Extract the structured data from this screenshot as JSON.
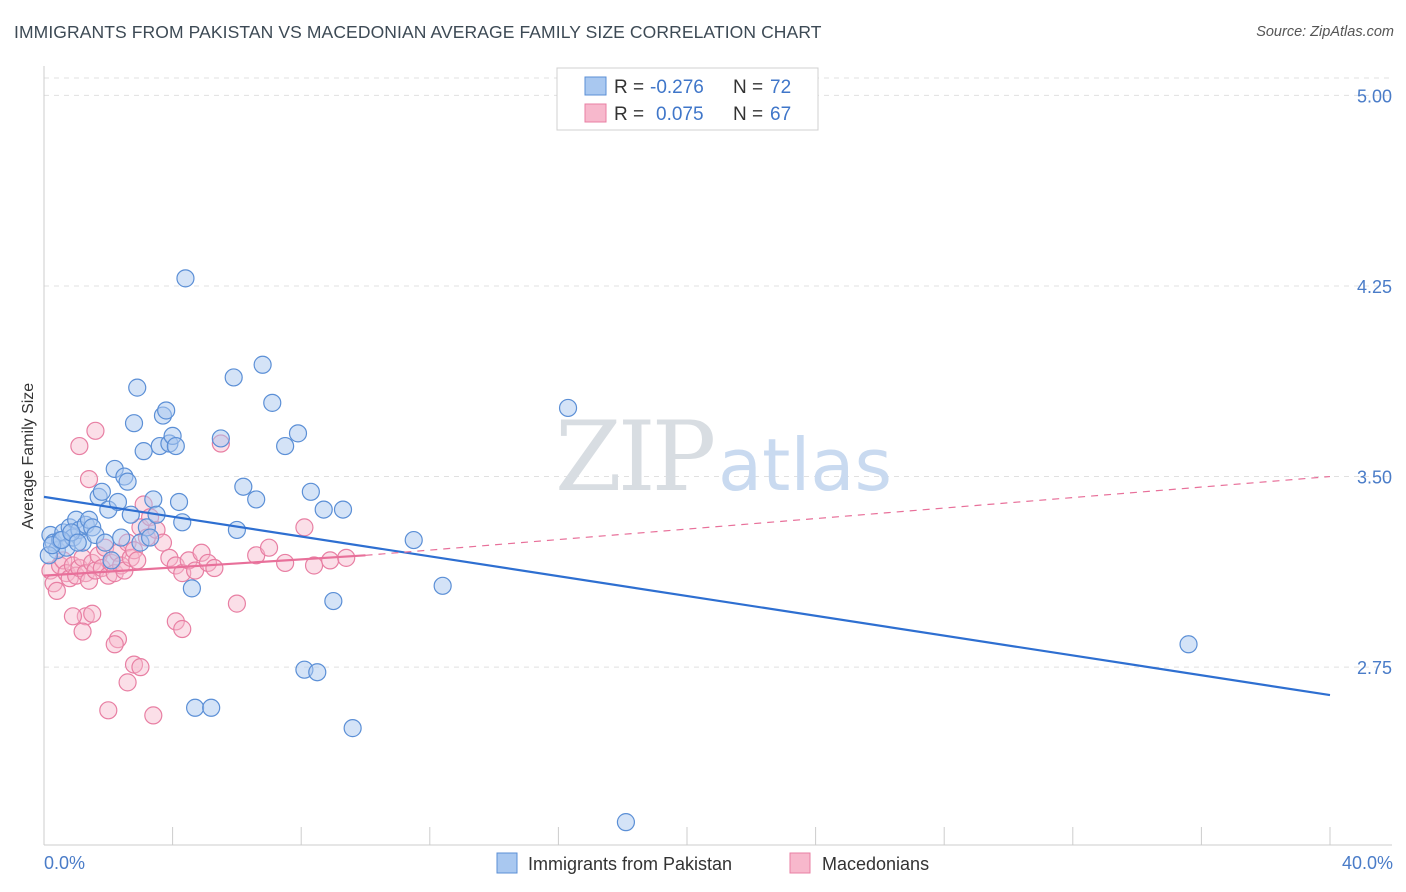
{
  "title": "IMMIGRANTS FROM PAKISTAN VS MACEDONIAN AVERAGE FAMILY SIZE CORRELATION CHART",
  "source": "Source: ZipAtlas.com",
  "watermark": {
    "zip": "ZIP",
    "atlas": "atlas"
  },
  "colors": {
    "blue_fill": "#a9c8f0",
    "blue_stroke": "#5b8fd6",
    "blue_line": "#2e6fd1",
    "pink_fill": "#f7b8cc",
    "pink_stroke": "#e87fa3",
    "pink_line": "#e8709a",
    "grid": "#e0e0e0",
    "tick_label": "#4a7cc8"
  },
  "legend": {
    "rows": [
      {
        "r_label": "R =",
        "r_value": "-0.276",
        "n_label": "N =",
        "n_value": "72"
      },
      {
        "r_label": "R =",
        "r_value": "0.075",
        "n_label": "N =",
        "n_value": "67"
      }
    ]
  },
  "chart_data": {
    "type": "scatter",
    "title": "IMMIGRANTS FROM PAKISTAN VS MACEDONIAN AVERAGE FAMILY SIZE CORRELATION CHART",
    "xlabel": "",
    "ylabel": "Average Family Size",
    "x_unit": "%",
    "xlim": [
      0,
      40
    ],
    "ylim": [
      2.05,
      5.1
    ],
    "x_tick_labels": [
      "0.0%",
      "40.0%"
    ],
    "y_ticks": [
      2.75,
      3.5,
      4.25,
      5.0
    ],
    "y_tick_labels": [
      "2.75",
      "3.50",
      "4.25",
      "5.00"
    ],
    "grid": true,
    "legend_position": "top-center",
    "series": [
      {
        "name": "Immigrants from Pakistan",
        "color": "#a9c8f0",
        "trend": {
          "x": [
            0,
            40
          ],
          "y": [
            3.42,
            2.64
          ],
          "style": "solid"
        },
        "points": [
          [
            0.2,
            3.27
          ],
          [
            0.3,
            3.24
          ],
          [
            0.4,
            3.21
          ],
          [
            0.5,
            3.25
          ],
          [
            0.6,
            3.28
          ],
          [
            0.7,
            3.22
          ],
          [
            0.8,
            3.3
          ],
          [
            0.9,
            3.26
          ],
          [
            1.0,
            3.33
          ],
          [
            1.1,
            3.29
          ],
          [
            1.2,
            3.24
          ],
          [
            1.3,
            3.31
          ],
          [
            1.4,
            3.33
          ],
          [
            1.5,
            3.3
          ],
          [
            1.6,
            3.27
          ],
          [
            1.7,
            3.42
          ],
          [
            1.8,
            3.44
          ],
          [
            1.9,
            3.24
          ],
          [
            2.0,
            3.37
          ],
          [
            2.1,
            3.17
          ],
          [
            2.2,
            3.53
          ],
          [
            2.3,
            3.4
          ],
          [
            2.4,
            3.26
          ],
          [
            2.5,
            3.5
          ],
          [
            2.6,
            3.48
          ],
          [
            2.7,
            3.35
          ],
          [
            2.8,
            3.71
          ],
          [
            2.9,
            3.85
          ],
          [
            3.0,
            3.24
          ],
          [
            3.1,
            3.6
          ],
          [
            3.2,
            3.3
          ],
          [
            3.3,
            3.26
          ],
          [
            3.4,
            3.41
          ],
          [
            3.5,
            3.35
          ],
          [
            3.6,
            3.62
          ],
          [
            3.7,
            3.74
          ],
          [
            3.8,
            3.76
          ],
          [
            3.9,
            3.63
          ],
          [
            4.0,
            3.66
          ],
          [
            4.1,
            3.62
          ],
          [
            4.2,
            3.4
          ],
          [
            4.3,
            3.32
          ],
          [
            4.4,
            4.28
          ],
          [
            4.6,
            3.06
          ],
          [
            4.7,
            2.59
          ],
          [
            5.2,
            2.59
          ],
          [
            5.5,
            3.65
          ],
          [
            5.9,
            3.89
          ],
          [
            6.0,
            3.29
          ],
          [
            6.2,
            3.46
          ],
          [
            6.6,
            3.41
          ],
          [
            6.8,
            3.94
          ],
          [
            7.1,
            3.79
          ],
          [
            7.5,
            3.62
          ],
          [
            7.9,
            3.67
          ],
          [
            8.1,
            2.74
          ],
          [
            8.3,
            3.44
          ],
          [
            8.5,
            2.73
          ],
          [
            8.7,
            3.37
          ],
          [
            9.0,
            3.01
          ],
          [
            9.3,
            3.37
          ],
          [
            9.6,
            2.51
          ],
          [
            11.5,
            3.25
          ],
          [
            12.4,
            3.07
          ],
          [
            16.3,
            3.77
          ],
          [
            18.1,
            2.14
          ],
          [
            35.6,
            2.84
          ],
          [
            0.15,
            3.19
          ],
          [
            0.25,
            3.23
          ],
          [
            0.55,
            3.25
          ],
          [
            0.85,
            3.28
          ],
          [
            1.05,
            3.24
          ]
        ]
      },
      {
        "name": "Macedonians",
        "color": "#f7b8cc",
        "trend": {
          "x": [
            0,
            10
          ],
          "y": [
            3.11,
            3.19
          ],
          "style": "solid",
          "extended_x": [
            10,
            40
          ],
          "extended_y": [
            3.19,
            3.5
          ],
          "extended_style": "dashed"
        },
        "points": [
          [
            0.2,
            3.13
          ],
          [
            0.3,
            3.08
          ],
          [
            0.4,
            3.05
          ],
          [
            0.5,
            3.15
          ],
          [
            0.6,
            3.17
          ],
          [
            0.7,
            3.12
          ],
          [
            0.8,
            3.1
          ],
          [
            0.9,
            3.15
          ],
          [
            1.0,
            3.11
          ],
          [
            1.1,
            3.14
          ],
          [
            1.2,
            3.18
          ],
          [
            1.3,
            3.12
          ],
          [
            1.4,
            3.09
          ],
          [
            1.5,
            3.16
          ],
          [
            1.6,
            3.13
          ],
          [
            1.7,
            3.19
          ],
          [
            1.8,
            3.14
          ],
          [
            1.9,
            3.22
          ],
          [
            2.0,
            3.11
          ],
          [
            2.1,
            3.16
          ],
          [
            2.2,
            3.12
          ],
          [
            2.3,
            3.2
          ],
          [
            2.4,
            3.15
          ],
          [
            2.5,
            3.13
          ],
          [
            2.6,
            3.24
          ],
          [
            2.7,
            3.18
          ],
          [
            2.8,
            3.21
          ],
          [
            2.9,
            3.17
          ],
          [
            3.0,
            3.3
          ],
          [
            3.1,
            3.39
          ],
          [
            3.2,
            3.26
          ],
          [
            3.3,
            3.34
          ],
          [
            3.5,
            3.29
          ],
          [
            3.7,
            3.24
          ],
          [
            3.9,
            3.18
          ],
          [
            4.1,
            3.15
          ],
          [
            4.3,
            3.12
          ],
          [
            4.5,
            3.17
          ],
          [
            4.7,
            3.13
          ],
          [
            4.9,
            3.2
          ],
          [
            5.1,
            3.16
          ],
          [
            5.3,
            3.14
          ],
          [
            5.5,
            3.63
          ],
          [
            6.0,
            3.0
          ],
          [
            6.6,
            3.19
          ],
          [
            7.0,
            3.22
          ],
          [
            7.5,
            3.16
          ],
          [
            8.1,
            3.3
          ],
          [
            8.4,
            3.15
          ],
          [
            8.9,
            3.17
          ],
          [
            9.4,
            3.18
          ],
          [
            1.4,
            3.49
          ],
          [
            1.6,
            3.68
          ],
          [
            1.1,
            3.62
          ],
          [
            1.3,
            2.95
          ],
          [
            1.5,
            2.96
          ],
          [
            0.9,
            2.95
          ],
          [
            1.2,
            2.89
          ],
          [
            2.3,
            2.86
          ],
          [
            2.2,
            2.84
          ],
          [
            2.8,
            2.76
          ],
          [
            3.0,
            2.75
          ],
          [
            2.6,
            2.69
          ],
          [
            2.0,
            2.58
          ],
          [
            3.4,
            2.56
          ],
          [
            4.1,
            2.93
          ],
          [
            4.3,
            2.9
          ]
        ]
      }
    ]
  },
  "bottom_legend": {
    "items": [
      {
        "label": "Immigrants from Pakistan",
        "swatch": "blue"
      },
      {
        "label": "Macedonians",
        "swatch": "pink"
      }
    ]
  }
}
